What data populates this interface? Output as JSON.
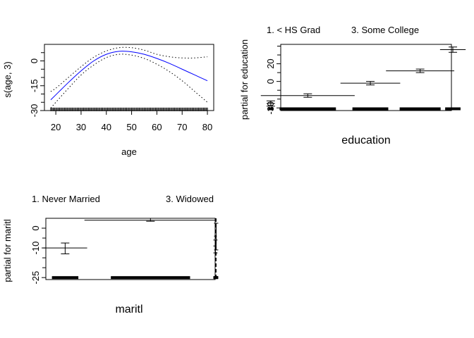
{
  "chart_data": [
    {
      "type": "line",
      "title": "",
      "xlabel": "age",
      "ylabel": "s(age, 3)",
      "xlim": [
        15.5,
        82.5
      ],
      "ylim": [
        -30,
        10
      ],
      "xticks": [
        20,
        30,
        40,
        50,
        60,
        70,
        80
      ],
      "xtick_labels": [
        "20",
        "30",
        "40",
        "50",
        "60",
        "70",
        "80"
      ],
      "yticks": [
        -30,
        -15,
        0
      ],
      "ytick_labels": [
        "-30",
        "-15",
        "0"
      ],
      "yticks_minor": [
        -25,
        -20,
        -10,
        -5,
        5
      ],
      "grid": false,
      "legend": "none",
      "colors": {
        "fit": "#0000ff",
        "band": "#000000"
      },
      "x": [
        18,
        20,
        25,
        30,
        35,
        40,
        45,
        50,
        55,
        60,
        65,
        70,
        75,
        80
      ],
      "series": [
        {
          "role": "fit",
          "style": "solid",
          "values": [
            -23.5,
            -20.5,
            -13,
            -6,
            0,
            4,
            5.8,
            5.5,
            4,
            1.5,
            -1.5,
            -5,
            -8.5,
            -12
          ]
        },
        {
          "role": "upper",
          "style": "dotted",
          "values": [
            -18.5,
            -16.5,
            -10,
            -3.5,
            2.2,
            6,
            8,
            8,
            6.5,
            4,
            2.5,
            1.8,
            1.8,
            2.5
          ]
        },
        {
          "role": "lower",
          "style": "dotted",
          "values": [
            -28.5,
            -25,
            -16.5,
            -8.5,
            -2.5,
            2,
            4,
            3.5,
            1.5,
            -2,
            -6.5,
            -12,
            -18.5,
            -25
          ]
        }
      ],
      "rug_y": -29.5,
      "rug_range": [
        18,
        80
      ]
    },
    {
      "type": "bar",
      "title": "",
      "xlabel": "education",
      "ylabel": "partial for education",
      "category_labels": [
        "1. < HS Grad",
        "3. Some College"
      ],
      "label_positions": [
        0,
        2
      ],
      "ylim": [
        -33,
        42
      ],
      "yticks": [
        -30,
        0,
        20
      ],
      "ytick_labels": [
        "-30",
        "0",
        "20"
      ],
      "yticks_minor": [
        -20,
        -10,
        10,
        30,
        40
      ],
      "grid": false,
      "legend": "none",
      "levels": [
        {
          "value": -25,
          "lower": -28,
          "upper": -22,
          "width": 0.05
        },
        {
          "value": -16,
          "lower": -18,
          "upper": -14,
          "width": 0.55
        },
        {
          "value": -2,
          "lower": -4,
          "upper": 0,
          "width": 0.35
        },
        {
          "value": 12,
          "lower": 10,
          "upper": 14,
          "width": 0.4
        },
        {
          "value": 36,
          "lower": 33,
          "upper": 39,
          "width": 0.15
        }
      ],
      "rug_y": -31
    },
    {
      "type": "bar",
      "title": "",
      "xlabel": "maritl",
      "ylabel": "partial for maritl",
      "category_labels": [
        "1. Never Married",
        "3. Widowed"
      ],
      "label_positions": [
        0,
        2
      ],
      "ylim": [
        -26,
        5
      ],
      "yticks": [
        -25,
        -10,
        0
      ],
      "ytick_labels": [
        "-25",
        "-10",
        "0"
      ],
      "yticks_minor": [
        -20,
        -15,
        -5
      ],
      "grid": false,
      "legend": "none",
      "levels": [
        {
          "value": -10,
          "lower": -13,
          "upper": -7.5,
          "width": 0.26,
          "style": "solid"
        },
        {
          "value": 4,
          "lower": 3.5,
          "upper": 5,
          "width": 0.78,
          "style": "solid"
        },
        {
          "value": -9,
          "lower": -12.5,
          "upper": -6,
          "width": 0.02,
          "style": "dashed"
        },
        {
          "value": -4,
          "lower": -11,
          "upper": 2.5,
          "width": 0.02,
          "style": "dashed"
        }
      ],
      "rug_y": -25
    }
  ]
}
